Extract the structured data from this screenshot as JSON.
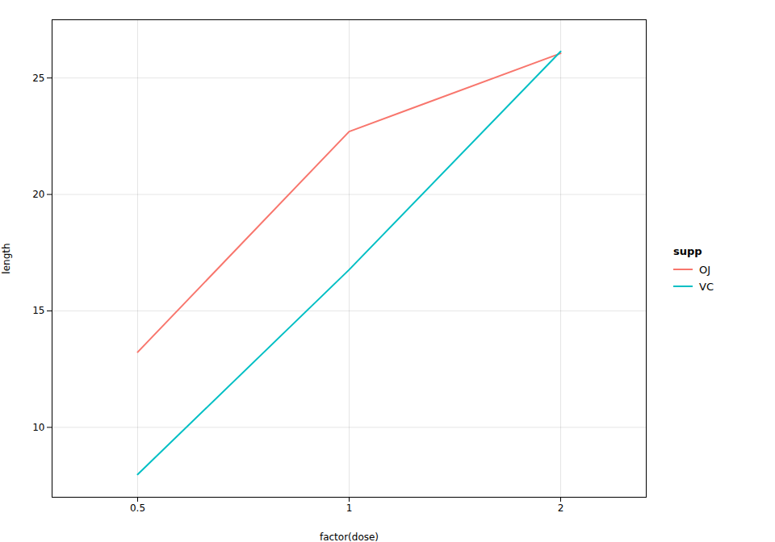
{
  "chart_data": {
    "type": "line",
    "categories": [
      "0.5",
      "1",
      "2"
    ],
    "series": [
      {
        "name": "OJ",
        "color": "#F8766D",
        "values": [
          13.23,
          22.7,
          26.06
        ]
      },
      {
        "name": "VC",
        "color": "#00BFC4",
        "values": [
          7.98,
          16.77,
          26.14
        ]
      }
    ],
    "xlabel": "factor(dose)",
    "ylabel": "length",
    "legend_title": "supp",
    "legend": "right",
    "ylim": [
      7.0,
      27.5
    ],
    "yticks": [
      10,
      15,
      20,
      25
    ],
    "grid": true
  }
}
